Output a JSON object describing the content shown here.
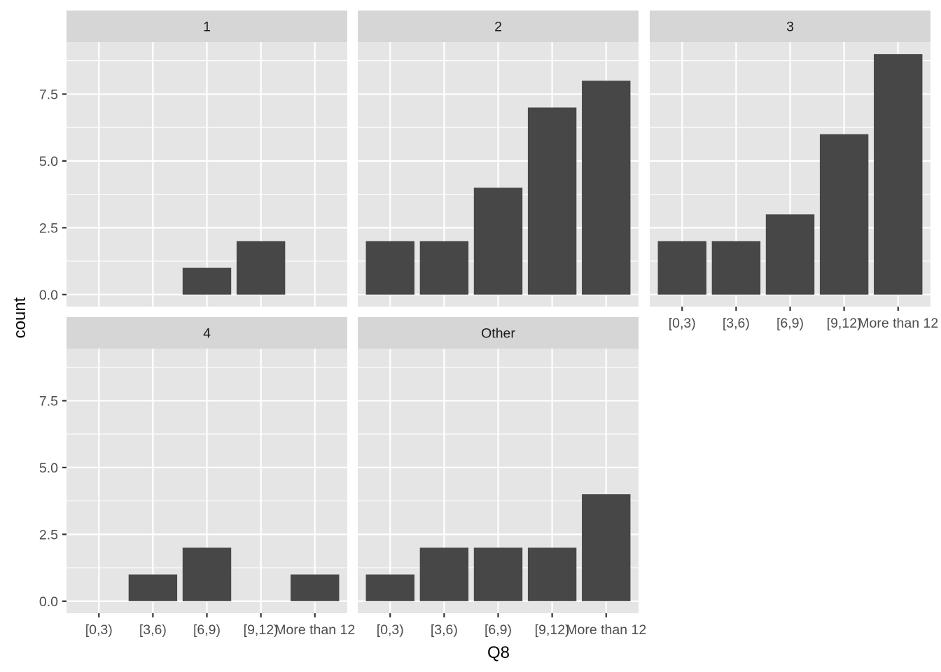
{
  "chart_data": {
    "type": "bar",
    "facet_layout": "wrap",
    "xlabel": "Q8",
    "ylabel": "count",
    "categories": [
      "[0,3)",
      "[3,6)",
      "[6,9)",
      "[9,12)",
      "More than 12"
    ],
    "ylim": [
      -0.45,
      9.45
    ],
    "yticks": [
      0.0,
      2.5,
      5.0,
      7.5
    ],
    "ytick_labels": [
      "0.0",
      "2.5",
      "5.0",
      "7.5"
    ],
    "grid": true,
    "facets": [
      {
        "label": "1",
        "values": [
          0,
          0,
          1,
          2,
          0
        ]
      },
      {
        "label": "2",
        "values": [
          2,
          2,
          4,
          7,
          8
        ]
      },
      {
        "label": "3",
        "values": [
          2,
          2,
          3,
          6,
          9
        ]
      },
      {
        "label": "4",
        "values": [
          0,
          1,
          2,
          0,
          1
        ]
      },
      {
        "label": "Other",
        "values": [
          1,
          2,
          2,
          2,
          4
        ]
      }
    ],
    "colors": {
      "panel_bg": "#e5e5e5",
      "strip_bg": "#d6d6d6",
      "grid": "#ffffff",
      "bar": "#474747",
      "tick_text": "#4d4d4d",
      "title_text": "#000000",
      "strip_text": "#1a1a1a"
    }
  }
}
